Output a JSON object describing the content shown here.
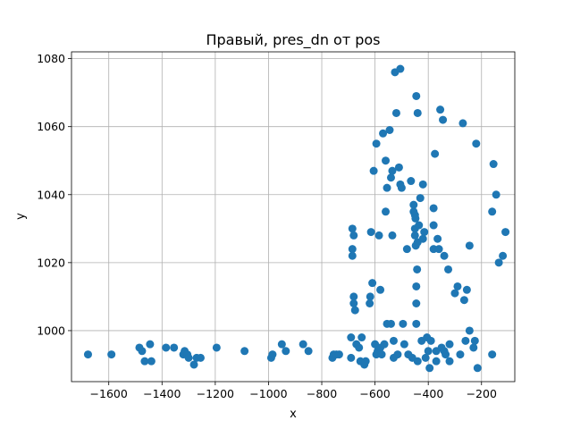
{
  "chart_data": {
    "type": "scatter",
    "title": "Правый, pres_dn от pos",
    "xlabel": "x",
    "ylabel": "y",
    "xlim": [
      -1740,
      -75
    ],
    "ylim": [
      985,
      1082
    ],
    "xticks": [
      -1600,
      -1400,
      -1200,
      -1000,
      -800,
      -600,
      -400,
      -200
    ],
    "yticks": [
      1000,
      1020,
      1040,
      1060,
      1080
    ],
    "grid": true,
    "color": "#1f77b4",
    "points": [
      [
        -1678,
        993
      ],
      [
        -1590,
        993
      ],
      [
        -1485,
        995
      ],
      [
        -1475,
        994
      ],
      [
        -1465,
        991
      ],
      [
        -1445,
        996
      ],
      [
        -1440,
        991
      ],
      [
        -1385,
        995
      ],
      [
        -1355,
        995
      ],
      [
        -1320,
        993
      ],
      [
        -1315,
        994
      ],
      [
        -1305,
        993
      ],
      [
        -1300,
        992
      ],
      [
        -1280,
        990
      ],
      [
        -1270,
        992
      ],
      [
        -1255,
        992
      ],
      [
        -1195,
        995
      ],
      [
        -1090,
        994
      ],
      [
        -990,
        992
      ],
      [
        -985,
        993
      ],
      [
        -950,
        996
      ],
      [
        -935,
        994
      ],
      [
        -870,
        996
      ],
      [
        -850,
        994
      ],
      [
        -760,
        992
      ],
      [
        -755,
        993
      ],
      [
        -745,
        993
      ],
      [
        -735,
        993
      ],
      [
        -690,
        998
      ],
      [
        -690,
        992
      ],
      [
        -685,
        1030
      ],
      [
        -685,
        1024
      ],
      [
        -685,
        1022
      ],
      [
        -680,
        1028
      ],
      [
        -680,
        1010
      ],
      [
        -680,
        1008
      ],
      [
        -675,
        1006
      ],
      [
        -670,
        996
      ],
      [
        -660,
        995
      ],
      [
        -655,
        991
      ],
      [
        -650,
        998
      ],
      [
        -640,
        990
      ],
      [
        -635,
        991
      ],
      [
        -620,
        1008
      ],
      [
        -618,
        1010
      ],
      [
        -615,
        1029
      ],
      [
        -610,
        1014
      ],
      [
        -605,
        1047
      ],
      [
        -600,
        996
      ],
      [
        -595,
        1055
      ],
      [
        -595,
        993
      ],
      [
        -590,
        994
      ],
      [
        -585,
        1028
      ],
      [
        -580,
        1012
      ],
      [
        -580,
        995
      ],
      [
        -575,
        993
      ],
      [
        -570,
        1058
      ],
      [
        -565,
        996
      ],
      [
        -560,
        1050
      ],
      [
        -560,
        1035
      ],
      [
        -555,
        1042
      ],
      [
        -555,
        1002
      ],
      [
        -545,
        1059
      ],
      [
        -540,
        1045
      ],
      [
        -540,
        1002
      ],
      [
        -535,
        1047
      ],
      [
        -535,
        1028
      ],
      [
        -530,
        997
      ],
      [
        -530,
        992
      ],
      [
        -525,
        1076
      ],
      [
        -520,
        1064
      ],
      [
        -515,
        993
      ],
      [
        -510,
        1048
      ],
      [
        -505,
        1043
      ],
      [
        -505,
        1077
      ],
      [
        -500,
        1042
      ],
      [
        -495,
        1002
      ],
      [
        -490,
        996
      ],
      [
        -480,
        1024
      ],
      [
        -475,
        993
      ],
      [
        -465,
        1044
      ],
      [
        -460,
        992
      ],
      [
        -455,
        1037
      ],
      [
        -455,
        1035
      ],
      [
        -450,
        1030
      ],
      [
        -450,
        1028
      ],
      [
        -450,
        1034
      ],
      [
        -448,
        1033
      ],
      [
        -447,
        1025
      ],
      [
        -445,
        1069
      ],
      [
        -445,
        1013
      ],
      [
        -445,
        1008
      ],
      [
        -445,
        1002
      ],
      [
        -442,
        1018
      ],
      [
        -440,
        1026
      ],
      [
        -440,
        1064
      ],
      [
        -440,
        991
      ],
      [
        -435,
        1031
      ],
      [
        -430,
        1039
      ],
      [
        -425,
        997
      ],
      [
        -420,
        1043
      ],
      [
        -420,
        1027
      ],
      [
        -415,
        1029
      ],
      [
        -410,
        992
      ],
      [
        -405,
        998
      ],
      [
        -400,
        994
      ],
      [
        -395,
        989
      ],
      [
        -390,
        997
      ],
      [
        -380,
        1036
      ],
      [
        -380,
        1031
      ],
      [
        -380,
        1024
      ],
      [
        -375,
        1052
      ],
      [
        -370,
        991
      ],
      [
        -370,
        994
      ],
      [
        -365,
        1027
      ],
      [
        -360,
        1024
      ],
      [
        -355,
        1065
      ],
      [
        -350,
        995
      ],
      [
        -345,
        1062
      ],
      [
        -340,
        1022
      ],
      [
        -340,
        994
      ],
      [
        -335,
        993
      ],
      [
        -325,
        1018
      ],
      [
        -320,
        996
      ],
      [
        -320,
        991
      ],
      [
        -300,
        1011
      ],
      [
        -290,
        1013
      ],
      [
        -280,
        993
      ],
      [
        -270,
        1061
      ],
      [
        -265,
        1009
      ],
      [
        -260,
        997
      ],
      [
        -255,
        1012
      ],
      [
        -245,
        1025
      ],
      [
        -245,
        1000
      ],
      [
        -230,
        995
      ],
      [
        -225,
        997
      ],
      [
        -220,
        1055
      ],
      [
        -215,
        989
      ],
      [
        -160,
        1035
      ],
      [
        -160,
        993
      ],
      [
        -155,
        1049
      ],
      [
        -145,
        1040
      ],
      [
        -135,
        1020
      ],
      [
        -120,
        1022
      ],
      [
        -110,
        1029
      ]
    ]
  }
}
